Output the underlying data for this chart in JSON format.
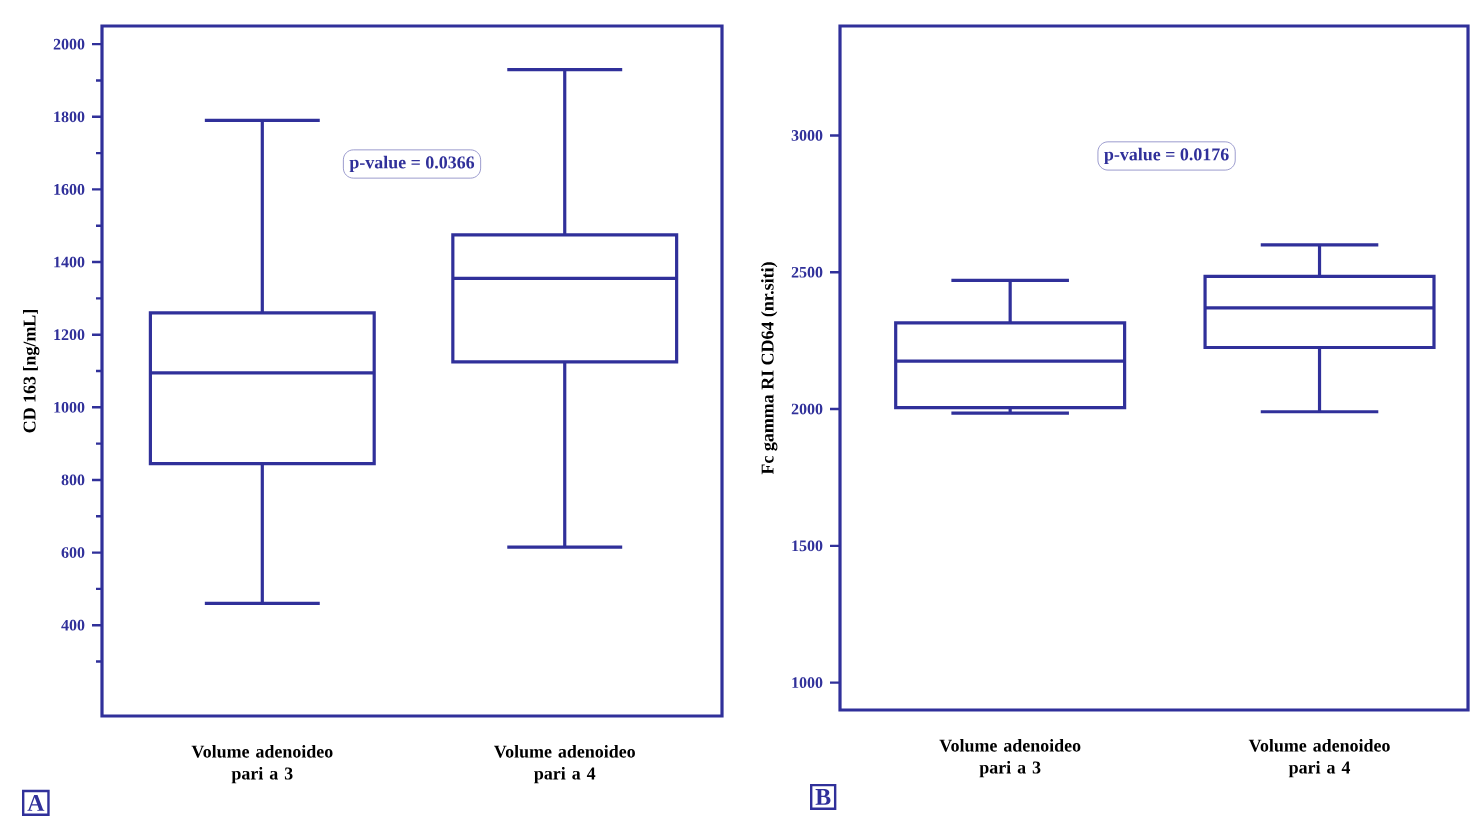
{
  "chart_data": [
    {
      "type": "box",
      "ylabel": "CD 163 [ng/mL]",
      "categories": [
        "Volume adenoideo pari a 3",
        "Volume adenoideo pari a 4"
      ],
      "series": [
        {
          "color": "#30309a",
          "boxes": [
            {
              "low": 460,
              "q1": 845,
              "median": 1095,
              "q3": 1260,
              "high": 1790
            },
            {
              "low": 615,
              "q1": 1125,
              "median": 1355,
              "q3": 1475,
              "high": 1930
            }
          ]
        }
      ],
      "ylim": [
        150,
        2050
      ],
      "yticks": [
        {
          "value": 300,
          "label": null
        },
        400,
        {
          "value": 500,
          "label": null
        },
        600,
        {
          "value": 700,
          "label": null
        },
        800,
        {
          "value": 900,
          "label": null
        },
        1000,
        {
          "value": 1100,
          "label": null
        },
        1200,
        {
          "value": 1300,
          "label": null
        },
        1400,
        {
          "value": 1500,
          "label": null
        },
        1600,
        {
          "value": 1700,
          "label": null
        },
        1800,
        {
          "value": 1900,
          "label": null
        },
        2000
      ],
      "annotations": [
        "p-value = 0.0366",
        "A"
      ]
    },
    {
      "type": "box",
      "ylabel": "Fc gamma RI CD64 (nr.siti)",
      "categories": [
        "Volume adenoideo pari a 3",
        "Volume adenoideo pari a 4"
      ],
      "series": [
        {
          "color": "#30309a",
          "boxes": [
            {
              "low": 1985,
              "q1": 2005,
              "median": 2175,
              "q3": 2315,
              "high": 2470
            },
            {
              "low": 1990,
              "q1": 2225,
              "median": 2370,
              "q3": 2485,
              "high": 2600
            }
          ]
        }
      ],
      "ylim": [
        900,
        3400
      ],
      "yticks": [
        1000,
        1500,
        2000,
        2500,
        3000
      ],
      "annotations": [
        "p-value = 0.0176",
        "B"
      ]
    }
  ]
}
